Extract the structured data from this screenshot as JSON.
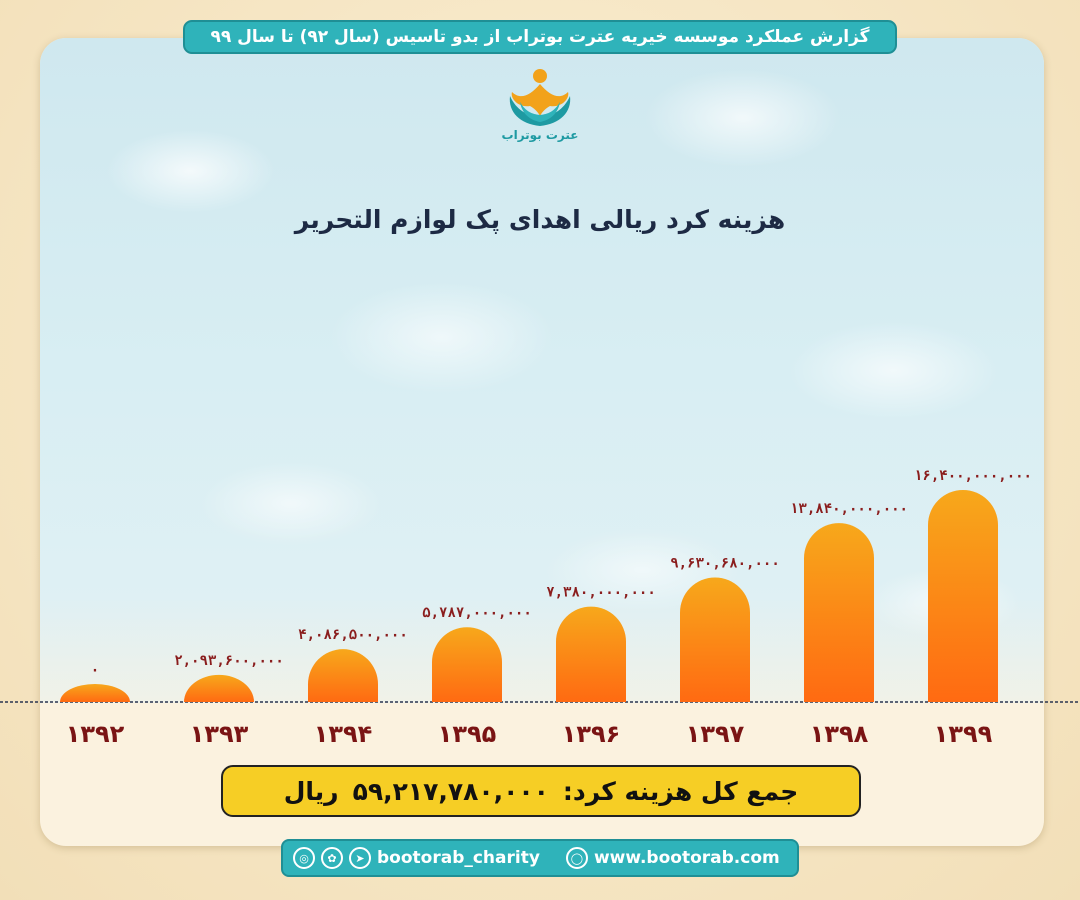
{
  "header": {
    "title": "گزارش عملکرد موسسه خیریه عترت بوتراب از بدو تاسیس (سال ۹۲) تا سال ۹۹"
  },
  "logo": {
    "text": "عترت بوتراب",
    "icon": "charity-hands-icon"
  },
  "colors": {
    "accent": "#2fb3ba",
    "bar_top": "#f7a81b",
    "bar_bottom": "#ff6a12",
    "value_label": "#8a1d1d",
    "total_bg": "#f6ce25"
  },
  "chart_data": {
    "type": "bar",
    "title": "هزینه کرد ریالی اهدای پک لوازم التحریر",
    "categories": [
      "۱۳۹۲",
      "۱۳۹۳",
      "۱۳۹۴",
      "۱۳۹۵",
      "۱۳۹۶",
      "۱۳۹۷",
      "۱۳۹۸",
      "۱۳۹۹"
    ],
    "values": [
      0,
      2093600000,
      4086500000,
      5787000000,
      7380000000,
      9630680000,
      13840000000,
      16400000000
    ],
    "value_labels": [
      "۰",
      "۲,۰۹۳,۶۰۰,۰۰۰",
      "۴,۰۸۶,۵۰۰,۰۰۰",
      "۵,۷۸۷,۰۰۰,۰۰۰",
      "۷,۳۸۰,۰۰۰,۰۰۰",
      "۹,۶۳۰,۶۸۰,۰۰۰",
      "۱۳,۸۴۰,۰۰۰,۰۰۰",
      "۱۶,۴۰۰,۰۰۰,۰۰۰"
    ],
    "xlabel": "",
    "ylabel": "",
    "grid": false,
    "legend": "none"
  },
  "total": {
    "label": "جمع کل هزینه کرد:",
    "value": "۵۹,۲۱۷,۷۸۰,۰۰۰",
    "unit": "ریال"
  },
  "footer": {
    "social_icons": [
      "instagram-icon",
      "aparat-icon",
      "telegram-icon"
    ],
    "handle": "bootorab_charity",
    "web_icon": "globe-icon",
    "website": "www.bootorab.com"
  }
}
